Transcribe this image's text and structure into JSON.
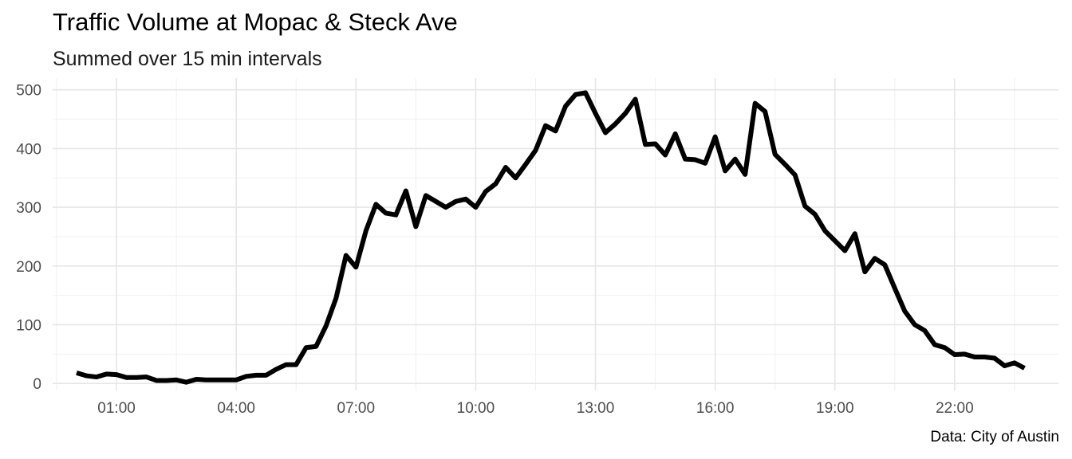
{
  "chart_data": {
    "type": "line",
    "title": "Traffic Volume at Mopac & Steck Ave",
    "subtitle": "Summed over 15 min intervals",
    "caption": "Data: City of Austin",
    "xlabel": "",
    "ylabel": "",
    "x_unit": "hours (time of day)",
    "xlim": [
      -0.6,
      24.6
    ],
    "ylim": [
      -12,
      520
    ],
    "x_ticks": [
      {
        "value": 1,
        "label": "01:00"
      },
      {
        "value": 4,
        "label": "04:00"
      },
      {
        "value": 7,
        "label": "07:00"
      },
      {
        "value": 10,
        "label": "10:00"
      },
      {
        "value": 13,
        "label": "13:00"
      },
      {
        "value": 16,
        "label": "16:00"
      },
      {
        "value": 19,
        "label": "19:00"
      },
      {
        "value": 22,
        "label": "22:00"
      }
    ],
    "y_ticks": [
      {
        "value": 0,
        "label": "0"
      },
      {
        "value": 100,
        "label": "100"
      },
      {
        "value": 200,
        "label": "200"
      },
      {
        "value": 300,
        "label": "300"
      },
      {
        "value": 400,
        "label": "400"
      },
      {
        "value": 500,
        "label": "500"
      }
    ],
    "grid": true,
    "line_color": "#000000",
    "series": [
      {
        "points": [
          [
            0.0,
            18
          ],
          [
            0.25,
            13
          ],
          [
            0.5,
            11
          ],
          [
            0.75,
            16
          ],
          [
            1.0,
            15
          ],
          [
            1.25,
            10
          ],
          [
            1.5,
            10
          ],
          [
            1.75,
            11
          ],
          [
            2.0,
            5
          ],
          [
            2.25,
            5
          ],
          [
            2.5,
            6
          ],
          [
            2.75,
            2
          ],
          [
            3.0,
            7
          ],
          [
            3.25,
            6
          ],
          [
            3.5,
            6
          ],
          [
            3.75,
            6
          ],
          [
            4.0,
            6
          ],
          [
            4.25,
            12
          ],
          [
            4.5,
            14
          ],
          [
            4.75,
            14
          ],
          [
            5.0,
            24
          ],
          [
            5.25,
            32
          ],
          [
            5.5,
            32
          ],
          [
            5.75,
            61
          ],
          [
            6.0,
            63
          ],
          [
            6.25,
            98
          ],
          [
            6.5,
            145
          ],
          [
            6.75,
            218
          ],
          [
            7.0,
            198
          ],
          [
            7.25,
            260
          ],
          [
            7.5,
            305
          ],
          [
            7.75,
            290
          ],
          [
            8.0,
            287
          ],
          [
            8.25,
            328
          ],
          [
            8.5,
            267
          ],
          [
            8.75,
            320
          ],
          [
            9.0,
            310
          ],
          [
            9.25,
            300
          ],
          [
            9.5,
            310
          ],
          [
            9.75,
            314
          ],
          [
            10.0,
            300
          ],
          [
            10.25,
            327
          ],
          [
            10.5,
            340
          ],
          [
            10.75,
            368
          ],
          [
            11.0,
            350
          ],
          [
            11.25,
            373
          ],
          [
            11.5,
            397
          ],
          [
            11.75,
            439
          ],
          [
            12.0,
            430
          ],
          [
            12.25,
            472
          ],
          [
            12.5,
            492
          ],
          [
            12.75,
            495
          ],
          [
            13.0,
            460
          ],
          [
            13.25,
            427
          ],
          [
            13.5,
            442
          ],
          [
            13.75,
            460
          ],
          [
            14.0,
            484
          ],
          [
            14.25,
            407
          ],
          [
            14.5,
            408
          ],
          [
            14.75,
            389
          ],
          [
            15.0,
            425
          ],
          [
            15.25,
            382
          ],
          [
            15.5,
            381
          ],
          [
            15.75,
            375
          ],
          [
            16.0,
            420
          ],
          [
            16.25,
            362
          ],
          [
            16.5,
            382
          ],
          [
            16.75,
            356
          ],
          [
            17.0,
            477
          ],
          [
            17.25,
            463
          ],
          [
            17.5,
            390
          ],
          [
            17.75,
            373
          ],
          [
            18.0,
            355
          ],
          [
            18.25,
            302
          ],
          [
            18.5,
            288
          ],
          [
            18.75,
            260
          ],
          [
            19.0,
            243
          ],
          [
            19.25,
            226
          ],
          [
            19.5,
            255
          ],
          [
            19.75,
            190
          ],
          [
            20.0,
            213
          ],
          [
            20.25,
            202
          ],
          [
            20.5,
            162
          ],
          [
            20.75,
            123
          ],
          [
            21.0,
            100
          ],
          [
            21.25,
            90
          ],
          [
            21.5,
            66
          ],
          [
            21.75,
            61
          ],
          [
            22.0,
            49
          ],
          [
            22.25,
            50
          ],
          [
            22.5,
            45
          ],
          [
            22.75,
            45
          ],
          [
            23.0,
            43
          ],
          [
            23.25,
            30
          ],
          [
            23.5,
            35
          ],
          [
            23.75,
            26
          ]
        ]
      }
    ]
  }
}
